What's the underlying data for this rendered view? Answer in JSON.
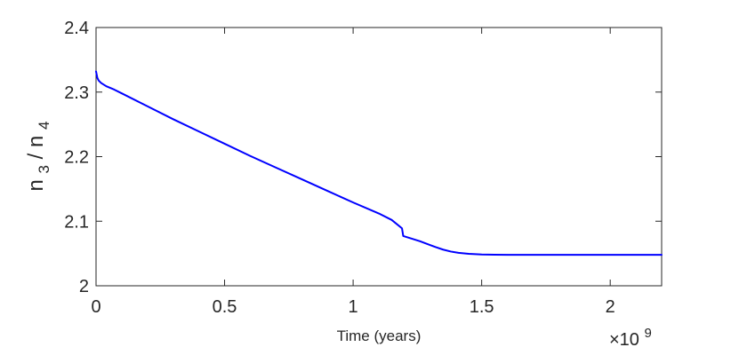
{
  "chart_data": {
    "type": "line",
    "title": "",
    "xlabel": "Time (years)",
    "ylabel": {
      "base1": "n",
      "sub1": "3",
      "slash": "/",
      "base2": "n",
      "sub2": "4"
    },
    "x_exponent_label": {
      "prefix": "×10",
      "exponent": "9"
    },
    "xlim": [
      0,
      2.2
    ],
    "ylim": [
      2.0,
      2.4
    ],
    "x_ticks": [
      0,
      0.5,
      1,
      1.5,
      2
    ],
    "x_tick_labels": [
      "0",
      "0.5",
      "1",
      "1.5",
      "2"
    ],
    "y_ticks": [
      2.0,
      2.1,
      2.2,
      2.3,
      2.4
    ],
    "y_tick_labels": [
      "2",
      "2.1",
      "2.2",
      "2.3",
      "2.4"
    ],
    "grid": false,
    "box": true,
    "series": [
      {
        "color": "#0000ff",
        "x": [
          0,
          0.002,
          0.005,
          0.01,
          0.02,
          0.04,
          0.07,
          0.1,
          0.2,
          0.3,
          0.4,
          0.5,
          0.6,
          0.7,
          0.8,
          0.9,
          1.0,
          1.1,
          1.15,
          1.19,
          1.195,
          1.22,
          1.26,
          1.3,
          1.32,
          1.35,
          1.38,
          1.41,
          1.45,
          1.5,
          1.55,
          1.6,
          1.65,
          1.7,
          1.8,
          1.9,
          2.0,
          2.1,
          2.2
        ],
        "y": [
          2.332,
          2.328,
          2.322,
          2.318,
          2.314,
          2.309,
          2.304,
          2.298,
          2.278,
          2.258,
          2.239,
          2.22,
          2.201,
          2.183,
          2.165,
          2.147,
          2.129,
          2.112,
          2.102,
          2.089,
          2.077,
          2.074,
          2.069,
          2.063,
          2.06,
          2.056,
          2.053,
          2.051,
          2.0495,
          2.0485,
          2.0481,
          2.048,
          2.048,
          2.048,
          2.048,
          2.048,
          2.048,
          2.048,
          2.048
        ]
      }
    ]
  }
}
